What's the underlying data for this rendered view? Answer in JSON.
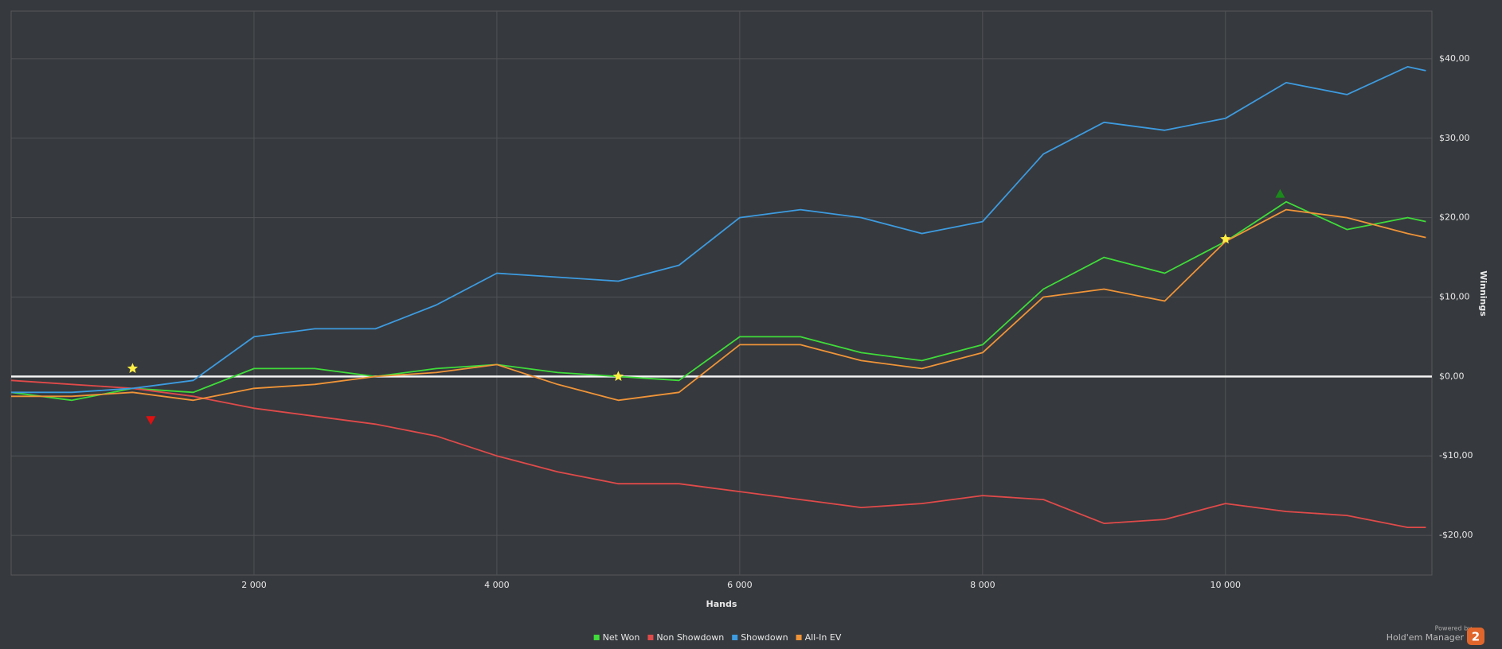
{
  "chart_data": {
    "type": "line",
    "x_label": "Hands",
    "y_label": "Winnings",
    "x": [
      0,
      500,
      1000,
      1500,
      2000,
      2500,
      3000,
      3500,
      4000,
      4500,
      5000,
      5500,
      6000,
      6500,
      7000,
      7500,
      8000,
      8500,
      9000,
      9500,
      10000,
      10500,
      11000,
      11500,
      11650
    ],
    "series": [
      {
        "name": "Net Won",
        "color": "#3fdc3a",
        "values": [
          -2,
          -3,
          -1.5,
          -2,
          1,
          1,
          0,
          1,
          1.5,
          0.5,
          0,
          -0.5,
          5,
          5,
          3,
          2,
          4,
          11,
          15,
          13,
          17,
          22,
          18.5,
          20,
          19.5
        ]
      },
      {
        "name": "Non Showdown",
        "color": "#e04a4a",
        "values": [
          -0.5,
          -1,
          -1.5,
          -2.5,
          -4,
          -5,
          -6,
          -7.5,
          -10,
          -12,
          -13.5,
          -13.5,
          -14.5,
          -15.5,
          -16.5,
          -16,
          -15,
          -15.5,
          -18.5,
          -18,
          -16,
          -17,
          -17.5,
          -19,
          -19
        ]
      },
      {
        "name": "Showdown",
        "color": "#3d9be0",
        "values": [
          -2,
          -2,
          -1.5,
          -0.5,
          5,
          6,
          6,
          9,
          13,
          12.5,
          12,
          14,
          20,
          21,
          20,
          18,
          19.5,
          28,
          32,
          31,
          32.5,
          37,
          35.5,
          39,
          38.5
        ]
      },
      {
        "name": "All-In EV",
        "color": "#f09438",
        "values": [
          -2.5,
          -2.5,
          -2,
          -3,
          -1.5,
          -1,
          0,
          0.5,
          1.5,
          -1,
          -3,
          -2,
          4,
          4,
          2,
          1,
          3,
          10,
          11,
          9.5,
          17,
          21,
          20,
          18,
          17.5
        ]
      }
    ],
    "markers": [
      {
        "x": 1000,
        "y": 1,
        "shape": "star",
        "color": "#ffee44"
      },
      {
        "x": 1150,
        "y": -5.5,
        "shape": "triangle-down",
        "color": "#e01010"
      },
      {
        "x": 5000,
        "y": 0,
        "shape": "star",
        "color": "#ffee44"
      },
      {
        "x": 10000,
        "y": 17.3,
        "shape": "star",
        "color": "#ffee44"
      },
      {
        "x": 10450,
        "y": 23,
        "shape": "triangle-up",
        "color": "#1a8a1a"
      }
    ],
    "xlim": [
      0,
      11700
    ],
    "ylim": [
      -25,
      46
    ],
    "xticks": [
      {
        "value": 2000,
        "label": "2 000"
      },
      {
        "value": 4000,
        "label": "4 000"
      },
      {
        "value": 6000,
        "label": "6 000"
      },
      {
        "value": 8000,
        "label": "8 000"
      },
      {
        "value": 10000,
        "label": "10 000"
      }
    ],
    "yticks": [
      {
        "value": -20,
        "label": "-$20,00"
      },
      {
        "value": -10,
        "label": "-$10,00"
      },
      {
        "value": 0,
        "label": "$0,00"
      },
      {
        "value": 10,
        "label": "$10,00"
      },
      {
        "value": 20,
        "label": "$20,00"
      },
      {
        "value": 30,
        "label": "$30,00"
      },
      {
        "value": 40,
        "label": "$40,00"
      }
    ],
    "grid": true,
    "legend": "bottom",
    "branding": {
      "powered_by": "Powered by",
      "product": "Hold'em Manager",
      "version": "2"
    }
  }
}
